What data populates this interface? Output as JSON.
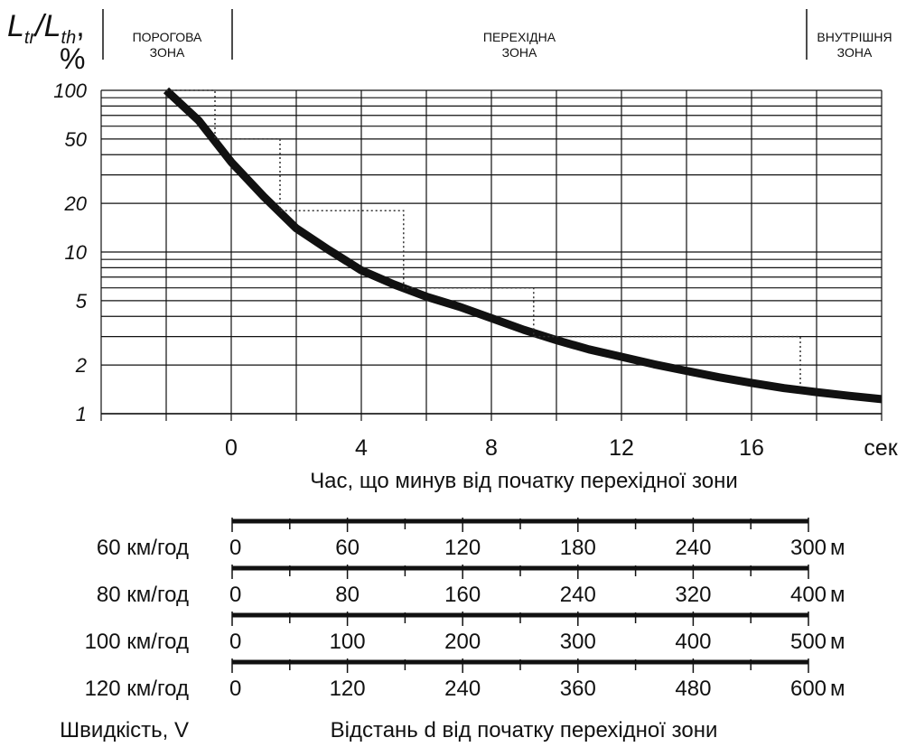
{
  "y_axis_label": {
    "symbol_main": "L",
    "sub1": "tr",
    "slash": "/",
    "symbol_main2": "L",
    "sub2": "th",
    "comma": ",",
    "unit": "%"
  },
  "zones": [
    {
      "line1": "ПОРОГОВА",
      "line2": "ЗОНА"
    },
    {
      "line1": "ПЕРЕХІДНА",
      "line2": "ЗОНА"
    },
    {
      "line1": "ВНУТРІШНЯ",
      "line2": "ЗОНА"
    }
  ],
  "chart_data": {
    "type": "line",
    "xlabel": "Час, що минув від початку перехідної зони",
    "x_unit_label": "сек",
    "x_ticks": [
      "0",
      "4",
      "8",
      "12",
      "16"
    ],
    "y_ticks": [
      "100",
      "50",
      "20",
      "10",
      "5",
      "2",
      "1"
    ],
    "y_scale": "log",
    "ylim": [
      1,
      100
    ],
    "xlim": [
      -4,
      20
    ],
    "grid": true,
    "series": [
      {
        "x": [
          -2,
          -1,
          0,
          1,
          2,
          3,
          4,
          5,
          6,
          7,
          8,
          9,
          10,
          11,
          12,
          13,
          14,
          15,
          16,
          17,
          18,
          19,
          20
        ],
        "y": [
          100,
          65,
          36,
          22,
          14,
          10.3,
          7.7,
          6.3,
          5.3,
          4.6,
          3.9,
          3.3,
          2.85,
          2.5,
          2.25,
          2.02,
          1.84,
          1.68,
          1.55,
          1.44,
          1.36,
          1.29,
          1.23
        ]
      },
      {
        "style": "dotted-steps",
        "x": [
          -2,
          -0.5,
          -0.5,
          1.5,
          1.5,
          5.3,
          5.3,
          9.3,
          9.3,
          17.5,
          17.5
        ],
        "y": [
          100,
          100,
          50,
          50,
          18,
          18,
          6,
          6,
          3,
          3,
          1.5
        ]
      }
    ]
  },
  "distance_scales": {
    "speed_axis_label": "Швидкість, V",
    "distance_axis_label": "Відстань d від початку перехідної зони",
    "unit": "м",
    "rows": [
      {
        "speed": "60 км/год",
        "ticks": [
          "0",
          "60",
          "120",
          "180",
          "240",
          "300"
        ]
      },
      {
        "speed": "80 км/год",
        "ticks": [
          "0",
          "80",
          "160",
          "240",
          "320",
          "400"
        ]
      },
      {
        "speed": "100 км/год",
        "ticks": [
          "0",
          "100",
          "200",
          "300",
          "400",
          "500"
        ]
      },
      {
        "speed": "120 км/год",
        "ticks": [
          "0",
          "120",
          "240",
          "360",
          "480",
          "600"
        ]
      }
    ]
  }
}
